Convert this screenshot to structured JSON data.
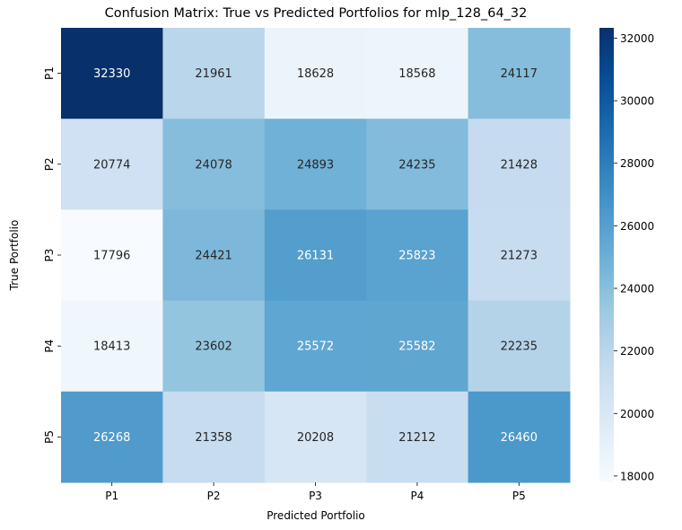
{
  "chart_data": {
    "type": "heatmap",
    "title": "Confusion Matrix: True vs Predicted Portfolios for mlp_128_64_32",
    "xlabel": "Predicted Portfolio",
    "ylabel": "True Portfolio",
    "x_categories": [
      "P1",
      "P2",
      "P3",
      "P4",
      "P5"
    ],
    "y_categories": [
      "P1",
      "P2",
      "P3",
      "P4",
      "P5"
    ],
    "values": [
      [
        32330,
        21961,
        18628,
        18568,
        24117
      ],
      [
        20774,
        24078,
        24893,
        24235,
        21428
      ],
      [
        17796,
        24421,
        26131,
        25823,
        21273
      ],
      [
        18413,
        23602,
        25572,
        25582,
        22235
      ],
      [
        26268,
        21358,
        20208,
        21212,
        26460
      ]
    ],
    "colormap": "Blues",
    "colorbar": {
      "range": [
        17796,
        32330
      ],
      "ticks": [
        18000,
        20000,
        22000,
        24000,
        26000,
        28000,
        30000,
        32000
      ]
    }
  }
}
